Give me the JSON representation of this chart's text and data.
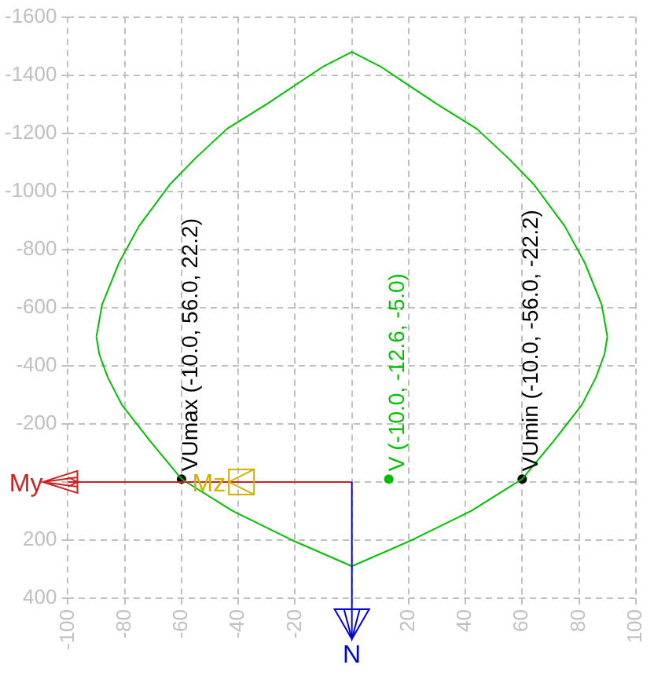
{
  "chart_data": {
    "type": "line",
    "xlim": [
      -100,
      100
    ],
    "xticks": [
      -100,
      -80,
      -60,
      -40,
      -20,
      {
        "value": 0,
        "label": null
      },
      20,
      40,
      60,
      80,
      100
    ],
    "ylim": [
      400,
      -1600
    ],
    "yticks": [
      -1600,
      -1400,
      -1200,
      -1000,
      -800,
      -600,
      -400,
      -200,
      {
        "value": 0,
        "label": null
      },
      200,
      400
    ],
    "grid": true,
    "legend": false,
    "series": [
      {
        "color": "#00c000",
        "marker": "none",
        "line_style": "solid",
        "x": [
          -90,
          -88,
          -82,
          -75,
          -64,
          -55,
          -44,
          -30,
          -10,
          0,
          10,
          30,
          44,
          55,
          64,
          75,
          82,
          88,
          90,
          null,
          -90,
          -89,
          -86,
          -81,
          -71,
          -60,
          -42,
          -20,
          0,
          20,
          42,
          60,
          71,
          81,
          86,
          89,
          90
        ],
        "values": [
          -500,
          -610,
          -755,
          -880,
          -1025,
          -1115,
          -1215,
          -1300,
          -1430,
          -1480,
          -1430,
          -1300,
          -1215,
          -1115,
          -1025,
          -880,
          -755,
          -610,
          -500,
          null,
          -500,
          -440,
          -360,
          -265,
          -140,
          -10,
          100,
          205,
          290,
          205,
          100,
          -10,
          -140,
          -265,
          -360,
          -440,
          -500
        ]
      },
      {
        "type": "scatter",
        "marker": "circle",
        "x": [
          -60,
          13,
          60
        ],
        "values": [
          -10,
          -10,
          -10
        ],
        "colors": [
          "#000000",
          "#00c000",
          "#000000"
        ]
      }
    ],
    "annotations": [
      {
        "text": "VUmax (-10.0, 56.0, 22.2)",
        "x": -60,
        "y": -10
      },
      {
        "text": "V (-10.0, -12.6, -5.0)",
        "x": 13,
        "y": -10
      },
      {
        "text": "VUmin (-10.0, -56.0, -22.2)",
        "x": 60,
        "y": -10
      },
      "My",
      "Mz",
      "N"
    ]
  }
}
